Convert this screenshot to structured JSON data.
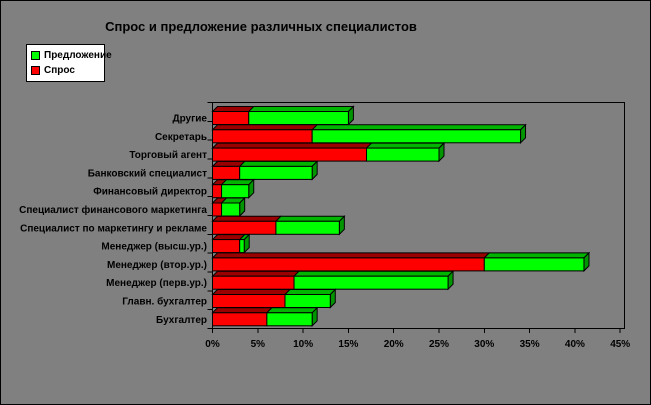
{
  "title": "Спрос и предложение различных специалистов",
  "legend": {
    "items": [
      {
        "label": "Предложение",
        "color": "#00FF00"
      },
      {
        "label": "Спрос",
        "color": "#FF0000"
      }
    ]
  },
  "colors": {
    "background": "#808080",
    "plot_background": "#808080",
    "border": "#000000",
    "text": "#000000",
    "demand_front": "#FF0000",
    "demand_top": "#9A0000",
    "supply_front": "#00FF00",
    "supply_top": "#00B400",
    "supply_end": "#009600"
  },
  "chart_data": {
    "type": "bar",
    "orientation": "horizontal",
    "stacked": true,
    "effect": "3d",
    "title": "Спрос и предложение различных специалистов",
    "categories": [
      "Другие",
      "Секретарь",
      "Торговый агент",
      "Банковский специалист",
      "Финансовый директор",
      "Специалист финансового маркетинга",
      "Специалист по маркетингу и рекламе",
      "Менеджер (высш.ур.)",
      "Менеджер (втор.ур.)",
      "Менеджер (перв.ур.)",
      "Главн. бухгалтер",
      "Бухгалтер"
    ],
    "series": [
      {
        "name": "Спрос",
        "color": "#FF0000",
        "values": [
          4,
          11,
          17,
          3,
          1,
          1,
          7,
          3,
          30,
          9,
          8,
          6
        ]
      },
      {
        "name": "Предложение",
        "color": "#00FF00",
        "values": [
          11,
          23,
          8,
          8,
          3,
          2,
          7,
          0.5,
          11,
          17,
          5,
          5
        ]
      }
    ],
    "x_axis": {
      "unit": "%",
      "min": 0,
      "max": 45,
      "tick_step": 5,
      "ticks": [
        "0%",
        "5%",
        "10%",
        "15%",
        "20%",
        "25%",
        "30%",
        "35%",
        "40%",
        "45%"
      ]
    },
    "legend_position": "top-left",
    "grid": false
  }
}
